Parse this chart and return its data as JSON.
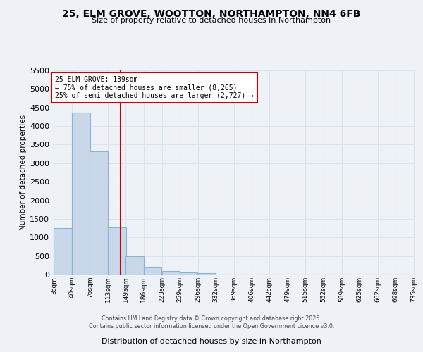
{
  "title": "25, ELM GROVE, WOOTTON, NORTHAMPTON, NN4 6FB",
  "subtitle": "Size of property relative to detached houses in Northampton",
  "xlabel": "Distribution of detached houses by size in Northampton",
  "ylabel": "Number of detached properties",
  "bins": [
    3,
    40,
    76,
    113,
    149,
    186,
    223,
    259,
    296,
    332,
    369,
    406,
    442,
    479,
    515,
    552,
    589,
    625,
    662,
    698,
    735
  ],
  "bin_labels": [
    "3sqm",
    "40sqm",
    "76sqm",
    "113sqm",
    "149sqm",
    "186sqm",
    "223sqm",
    "259sqm",
    "296sqm",
    "332sqm",
    "369sqm",
    "406sqm",
    "442sqm",
    "479sqm",
    "515sqm",
    "552sqm",
    "589sqm",
    "625sqm",
    "662sqm",
    "698sqm",
    "735sqm"
  ],
  "bar_heights": [
    1260,
    4370,
    3310,
    1270,
    500,
    215,
    90,
    55,
    45,
    0,
    0,
    0,
    0,
    0,
    0,
    0,
    0,
    0,
    0,
    0
  ],
  "bar_color": "#c8d8ea",
  "bar_edgecolor": "#8ab4d0",
  "ylim": [
    0,
    5500
  ],
  "yticks": [
    0,
    500,
    1000,
    1500,
    2000,
    2500,
    3000,
    3500,
    4000,
    4500,
    5000,
    5500
  ],
  "vline_x": 139,
  "vline_color": "#cc0000",
  "annotation_text": "25 ELM GROVE: 139sqm\n← 75% of detached houses are smaller (8,265)\n25% of semi-detached houses are larger (2,727) →",
  "annotation_box_color": "#cc0000",
  "background_color": "#eef2f7",
  "grid_color": "#d8e4f0",
  "footer_line1": "Contains HM Land Registry data © Crown copyright and database right 2025.",
  "footer_line2": "Contains public sector information licensed under the Open Government Licence v3.0."
}
